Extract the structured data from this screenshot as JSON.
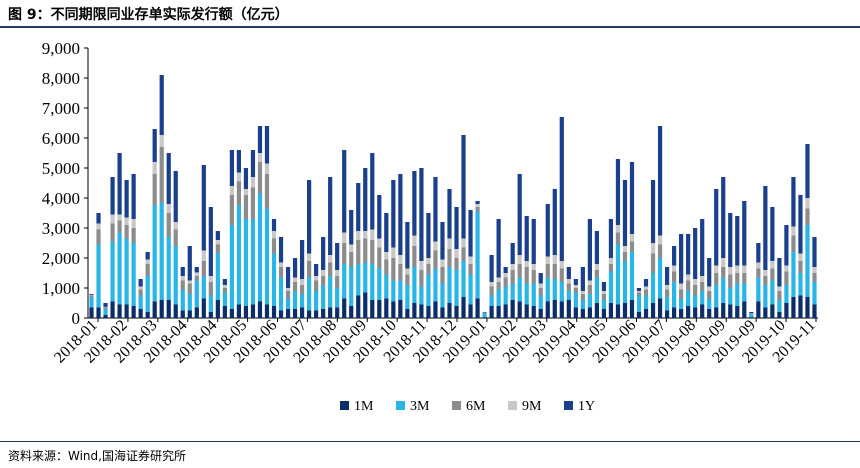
{
  "header": {
    "figure_title": "图 9：不同期限同业存单实际发行额（亿元）"
  },
  "footer": {
    "source": "资料来源：Wind,国海证券研究所"
  },
  "colors": {
    "1M": "#0c2d6b",
    "3M": "#29b5e8",
    "6M": "#8c8c8c",
    "9M": "#c8c8c8",
    "1Y": "#1a3f8c",
    "header_rule": "#1f3864"
  },
  "chart_data": {
    "type": "bar",
    "stacked": true,
    "title": "",
    "xlabel": "",
    "ylabel": "",
    "ylim": [
      0,
      9000
    ],
    "yticks": [
      "0",
      "1,000",
      "2,000",
      "3,000",
      "4,000",
      "5,000",
      "6,000",
      "7,000",
      "8,000",
      "9,000"
    ],
    "x_tick_labels": [
      "2018-01",
      "2018-02",
      "2018-03",
      "2018-04",
      "2018-04",
      "2018-05",
      "2018-06",
      "2018-07",
      "2018-08",
      "2018-09",
      "2018-10",
      "2018-11",
      "2018-12",
      "2019-01",
      "2019-02",
      "2019-03",
      "2019-04",
      "2019-05",
      "2019-06",
      "2019-07",
      "2019-08",
      "2019-09",
      "2019-09",
      "2019-10",
      "2019-11"
    ],
    "legend": {
      "position": "bottom",
      "entries": [
        "1M",
        "3M",
        "6M",
        "9M",
        "1Y"
      ]
    },
    "grid": false,
    "totals": [
      800,
      3500,
      500,
      4700,
      5500,
      4600,
      4800,
      1300,
      2200,
      6300,
      8100,
      5500,
      4900,
      1700,
      2400,
      1700,
      5100,
      3700,
      2900,
      1300,
      5600,
      5600,
      5000,
      5600,
      6400,
      6400,
      3300,
      2700,
      1700,
      2000,
      2600,
      4600,
      1800,
      2700,
      4700,
      2500,
      5600,
      3600,
      4500,
      5000,
      5500,
      4100,
      3500,
      4600,
      4800,
      3200,
      4900,
      5000,
      3500,
      4700,
      3200,
      4300,
      3700,
      6100,
      3600,
      3900,
      200,
      2100,
      3300,
      1700,
      2500,
      4800,
      3400,
      3300,
      1500,
      3800,
      4300,
      6700,
      1700,
      1300,
      1700,
      3300,
      2900,
      1200,
      3300,
      5300,
      4600,
      5200,
      1000,
      1300,
      4600,
      6400,
      1700,
      2400,
      2800,
      2800,
      3000,
      3300,
      2000,
      4300,
      4700,
      3500,
      3400,
      3900,
      200,
      2500,
      4400,
      3700,
      2000,
      3100,
      4700,
      4100,
      5800,
      2700
    ],
    "series": [
      {
        "name": "1M",
        "values": [
          350,
          350,
          100,
          550,
          450,
          450,
          400,
          300,
          200,
          550,
          600,
          600,
          450,
          250,
          250,
          350,
          650,
          200,
          600,
          400,
          300,
          450,
          400,
          450,
          550,
          450,
          400,
          250,
          300,
          300,
          350,
          250,
          250,
          300,
          350,
          350,
          650,
          400,
          750,
          850,
          600,
          600,
          650,
          550,
          600,
          300,
          500,
          450,
          400,
          550,
          350,
          500,
          400,
          700,
          450,
          650,
          30,
          400,
          400,
          450,
          600,
          550,
          450,
          400,
          300,
          550,
          600,
          550,
          600,
          350,
          300,
          350,
          500,
          300,
          500,
          450,
          500,
          600,
          200,
          300,
          500,
          650,
          250,
          350,
          300,
          400,
          350,
          450,
          300,
          350,
          500,
          450,
          400,
          550,
          30,
          550,
          350,
          450,
          200,
          500,
          700,
          750,
          700,
          450
        ]
      },
      {
        "name": "3M",
        "values": [
          350,
          2100,
          200,
          2000,
          2400,
          2200,
          2100,
          450,
          1200,
          3200,
          3250,
          2100,
          1950,
          700,
          550,
          900,
          750,
          550,
          1550,
          450,
          2800,
          3300,
          2900,
          2850,
          3600,
          3200,
          1750,
          1100,
          350,
          600,
          450,
          1100,
          650,
          800,
          1050,
          650,
          1150,
          1300,
          1050,
          1000,
          1200,
          1050,
          800,
          700,
          650,
          800,
          1200,
          600,
          1050,
          1100,
          800,
          1200,
          1200,
          1200,
          1000,
          2900,
          120,
          350,
          550,
          600,
          550,
          800,
          700,
          750,
          450,
          800,
          700,
          650,
          300,
          500,
          300,
          450,
          850,
          300,
          1050,
          2000,
          1400,
          1600,
          550,
          450,
          1000,
          1350,
          450,
          850,
          350,
          500,
          400,
          450,
          350,
          750,
          850,
          550,
          750,
          600,
          100,
          800,
          750,
          800,
          400,
          600,
          1500,
          750,
          2400,
          750
        ]
      },
      {
        "name": "6M",
        "values": [
          50,
          500,
          50,
          600,
          400,
          450,
          500,
          200,
          400,
          1050,
          1850,
          800,
          550,
          300,
          350,
          150,
          500,
          450,
          300,
          150,
          1000,
          800,
          800,
          1050,
          1050,
          1150,
          500,
          350,
          250,
          300,
          300,
          550,
          350,
          300,
          450,
          400,
          700,
          500,
          800,
          800,
          800,
          700,
          500,
          750,
          550,
          350,
          700,
          550,
          350,
          600,
          550,
          600,
          400,
          450,
          350,
          150,
          20,
          300,
          250,
          300,
          450,
          450,
          550,
          450,
          250,
          450,
          500,
          450,
          250,
          150,
          200,
          300,
          250,
          200,
          250,
          400,
          300,
          350,
          100,
          200,
          650,
          450,
          250,
          350,
          300,
          350,
          350,
          300,
          250,
          400,
          350,
          450,
          350,
          350,
          20,
          300,
          300,
          400,
          300,
          450,
          550,
          400,
          550,
          300
        ]
      },
      {
        "name": "9M",
        "values": [
          20,
          200,
          20,
          300,
          200,
          250,
          300,
          100,
          150,
          400,
          400,
          300,
          250,
          150,
          100,
          120,
          350,
          200,
          150,
          100,
          300,
          300,
          200,
          350,
          300,
          350,
          250,
          150,
          100,
          150,
          200,
          250,
          150,
          200,
          250,
          200,
          350,
          250,
          300,
          250,
          350,
          300,
          250,
          350,
          300,
          200,
          350,
          300,
          200,
          300,
          250,
          350,
          300,
          300,
          250,
          100,
          10,
          150,
          150,
          150,
          200,
          300,
          200,
          200,
          150,
          250,
          300,
          250,
          150,
          100,
          100,
          150,
          200,
          100,
          200,
          250,
          200,
          250,
          50,
          100,
          350,
          300,
          150,
          200,
          200,
          200,
          200,
          200,
          150,
          250,
          300,
          250,
          250,
          250,
          10,
          200,
          200,
          250,
          150,
          200,
          300,
          250,
          350,
          200
        ]
      },
      {
        "name": "1Y",
        "values": [
          30,
          350,
          130,
          1250,
          2050,
          1250,
          1500,
          250,
          250,
          1100,
          2000,
          1700,
          1700,
          300,
          1150,
          180,
          2850,
          2300,
          300,
          200,
          1200,
          750,
          700,
          900,
          900,
          1250,
          400,
          850,
          700,
          650,
          1300,
          2450,
          400,
          1100,
          2600,
          900,
          2750,
          1150,
          1600,
          2100,
          2550,
          1450,
          1300,
          2250,
          2700,
          1550,
          2150,
          3100,
          1500,
          2150,
          1250,
          1650,
          1400,
          3450,
          1550,
          100,
          20,
          900,
          1950,
          200,
          700,
          2700,
          1500,
          1500,
          350,
          1750,
          2200,
          4800,
          400,
          200,
          800,
          2050,
          1100,
          300,
          1300,
          2200,
          2200,
          2400,
          100,
          250,
          2100,
          3650,
          600,
          650,
          1650,
          1350,
          1700,
          1900,
          950,
          2550,
          2700,
          1800,
          1650,
          2150,
          40,
          650,
          2800,
          1800,
          950,
          1350,
          1650,
          1950,
          1800,
          1000
        ]
      }
    ]
  }
}
